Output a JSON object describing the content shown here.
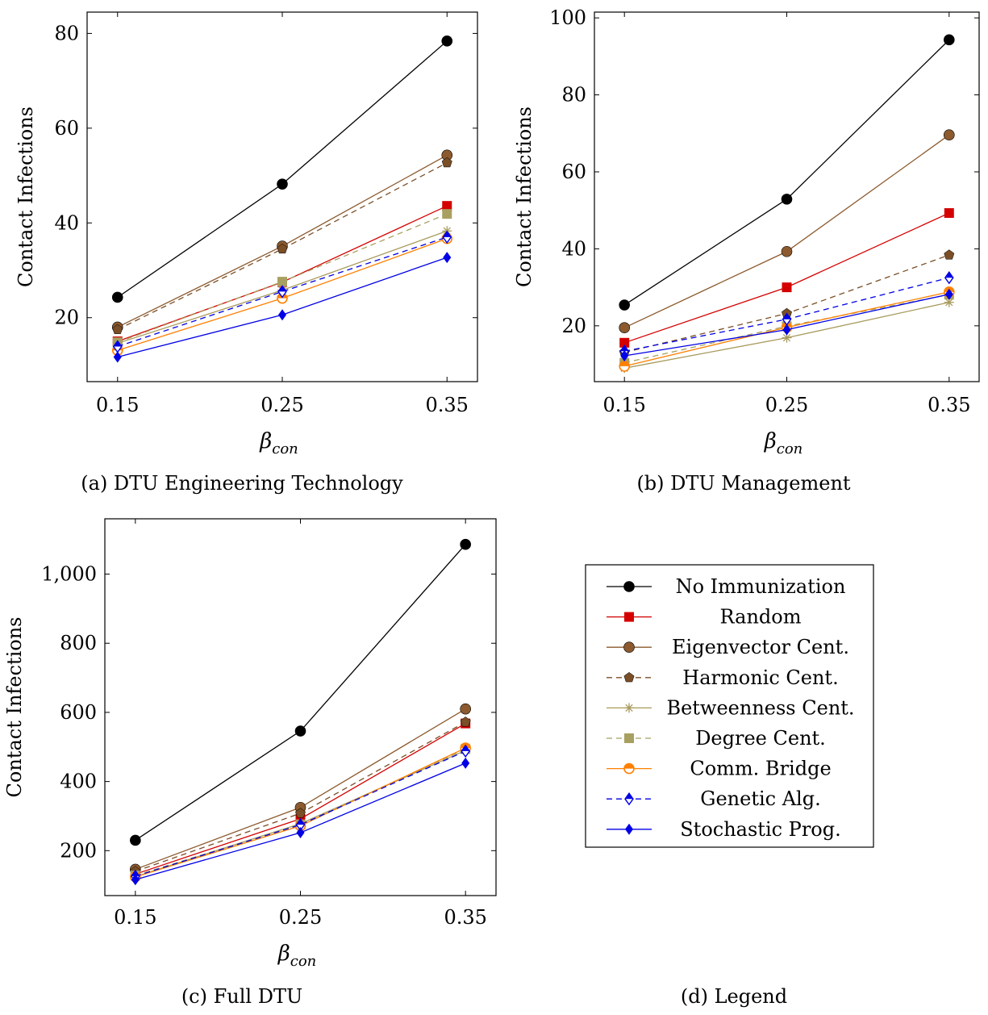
{
  "series_styles": [
    {
      "name": "No Immunization",
      "color": "#000000",
      "marker": "circle",
      "dash": false
    },
    {
      "name": "Random",
      "color": "#d40000",
      "marker": "square",
      "dash": false
    },
    {
      "name": "Eigenvector Cent.",
      "color": "#8c5a2e",
      "marker": "circle",
      "dash": false
    },
    {
      "name": "Harmonic Cent.",
      "color": "#7a4e26",
      "marker": "pentagon",
      "dash": true
    },
    {
      "name": "Betweenness Cent.",
      "color": "#a89a5c",
      "marker": "star",
      "dash": false
    },
    {
      "name": "Degree Cent.",
      "color": "#a8a060",
      "marker": "square",
      "dash": true
    },
    {
      "name": "Comm. Bridge",
      "color": "#ff8000",
      "marker": "halfcircle",
      "dash": false
    },
    {
      "name": "Genetic Alg.",
      "color": "#0000e6",
      "marker": "halfdiamond",
      "dash": true
    },
    {
      "name": "Stochastic Prog.",
      "color": "#0000e6",
      "marker": "diamond",
      "dash": false
    }
  ],
  "legend": {
    "caption": "(d) Legend",
    "entries": [
      "No Immunization",
      "Random",
      "Eigenvector Cent.",
      "Harmonic Cent.",
      "Betweenness Cent.",
      "Degree Cent.",
      "Comm. Bridge",
      "Genetic Alg.",
      "Stochastic Prog."
    ]
  },
  "chart_data": [
    {
      "type": "line",
      "caption": "(a) DTU Engineering Technology",
      "xlabel_main": "β",
      "xlabel_sub": "con",
      "ylabel": "Contact Infections",
      "x": [
        0.15,
        0.25,
        0.35
      ],
      "x_tick_labels": [
        "0.15",
        "0.25",
        "0.35"
      ],
      "y_ticks": [
        20,
        40,
        60,
        80
      ],
      "y_tick_labels": [
        "20",
        "40",
        "60",
        "80"
      ],
      "ylim": [
        6.5,
        84.5
      ],
      "series": [
        {
          "name": "No Immunization",
          "values": [
            24.3,
            48.2,
            78.4
          ]
        },
        {
          "name": "Random",
          "values": [
            15.0,
            27.5,
            43.6
          ]
        },
        {
          "name": "Eigenvector Cent.",
          "values": [
            18.0,
            35.1,
            54.3
          ]
        },
        {
          "name": "Harmonic Cent.",
          "values": [
            17.5,
            34.5,
            52.7
          ]
        },
        {
          "name": "Betweenness Cent.",
          "values": [
            14.6,
            25.8,
            38.3
          ]
        },
        {
          "name": "Degree Cent.",
          "values": [
            14.8,
            27.6,
            41.9
          ]
        },
        {
          "name": "Comm. Bridge",
          "values": [
            13.1,
            24.1,
            36.7
          ]
        },
        {
          "name": "Genetic Alg.",
          "values": [
            13.9,
            25.5,
            37.0
          ]
        },
        {
          "name": "Stochastic Prog.",
          "values": [
            11.7,
            20.6,
            32.7
          ]
        }
      ]
    },
    {
      "type": "line",
      "caption": "(b) DTU Management",
      "xlabel_main": "β",
      "xlabel_sub": "con",
      "ylabel": "Contact Infections",
      "x": [
        0.15,
        0.25,
        0.35
      ],
      "x_tick_labels": [
        "0.15",
        "0.25",
        "0.35"
      ],
      "y_ticks": [
        20,
        40,
        60,
        80,
        100
      ],
      "y_tick_labels": [
        "20",
        "40",
        "60",
        "80",
        "100"
      ],
      "ylim": [
        5.5,
        101.5
      ],
      "series": [
        {
          "name": "No Immunization",
          "values": [
            25.4,
            52.9,
            94.3
          ]
        },
        {
          "name": "Random",
          "values": [
            15.6,
            30.0,
            49.3
          ]
        },
        {
          "name": "Eigenvector Cent.",
          "values": [
            19.5,
            39.3,
            69.6
          ]
        },
        {
          "name": "Harmonic Cent.",
          "values": [
            13.1,
            23.2,
            38.4
          ]
        },
        {
          "name": "Betweenness Cent.",
          "values": [
            9.0,
            16.9,
            26.1
          ]
        },
        {
          "name": "Degree Cent.",
          "values": [
            10.4,
            19.9,
            28.1
          ]
        },
        {
          "name": "Comm. Bridge",
          "values": [
            9.5,
            19.6,
            28.8
          ]
        },
        {
          "name": "Genetic Alg.",
          "values": [
            13.4,
            21.7,
            32.5
          ]
        },
        {
          "name": "Stochastic Prog.",
          "values": [
            12.2,
            19.0,
            28.2
          ]
        }
      ]
    },
    {
      "type": "line",
      "caption": "(c) Full DTU",
      "xlabel_main": "β",
      "xlabel_sub": "con",
      "ylabel": "Contact Infections",
      "x": [
        0.15,
        0.25,
        0.35
      ],
      "x_tick_labels": [
        "0.15",
        "0.25",
        "0.35"
      ],
      "y_ticks": [
        200,
        400,
        600,
        800,
        1000
      ],
      "y_tick_labels": [
        "200",
        "400",
        "600",
        "800",
        "1,000"
      ],
      "ylim": [
        70,
        1160
      ],
      "series": [
        {
          "name": "No Immunization",
          "values": [
            230,
            546,
            1086
          ]
        },
        {
          "name": "Random",
          "values": [
            132,
            292,
            568
          ]
        },
        {
          "name": "Eigenvector Cent.",
          "values": [
            146,
            325,
            610
          ]
        },
        {
          "name": "Harmonic Cent.",
          "values": [
            140,
            308,
            572
          ]
        },
        {
          "name": "Betweenness Cent.",
          "values": [
            125,
            278,
            490
          ]
        },
        {
          "name": "Degree Cent.",
          "values": [
            128,
            276,
            494
          ]
        },
        {
          "name": "Comm. Bridge",
          "values": [
            124,
            272,
            497
          ]
        },
        {
          "name": "Genetic Alg.",
          "values": [
            126,
            275,
            488
          ]
        },
        {
          "name": "Stochastic Prog.",
          "values": [
            116,
            252,
            453
          ]
        }
      ]
    }
  ]
}
